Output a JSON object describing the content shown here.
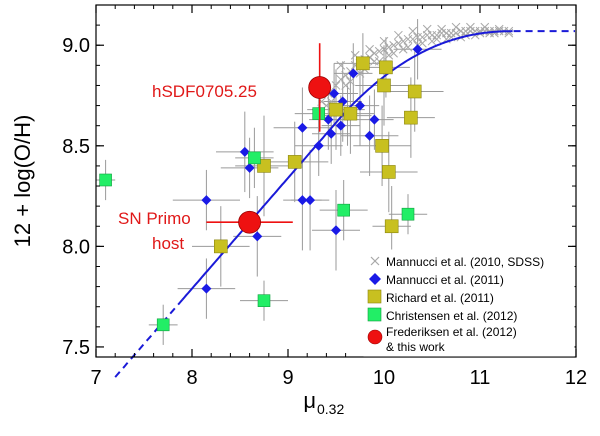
{
  "chart_data": {
    "type": "scatter",
    "xlabel_main": "μ",
    "xlabel_sub": "0.32",
    "ylabel": "12 + log(O/H)",
    "xlim": [
      7,
      12
    ],
    "ylim": [
      7.45,
      9.2
    ],
    "xticks": [
      "7",
      "8",
      "9",
      "10",
      "11",
      "12"
    ],
    "xtick_values": [
      7,
      8,
      9,
      10,
      11,
      12
    ],
    "yticks": [
      "7.5",
      "8.0",
      "8.5",
      "9.0"
    ],
    "ytick_values": [
      7.5,
      8.0,
      8.5,
      9.0
    ],
    "legend_position": "bottom-right",
    "colors": {
      "sdss": "#a8a8a8",
      "mannucci2011": "#1a1ae6",
      "richard": "#c8c020",
      "christensen": "#22ee66",
      "frederiksen": "#ee1111",
      "relation": "#1a1ad8",
      "errorbar": "#9a9a9a",
      "annotation": "#e01818"
    },
    "relation_solid": {
      "x_start": 7.9,
      "x_end": 11.35
    },
    "relation_dashed_low": {
      "x_start": 7.2,
      "x_end": 7.9
    },
    "relation_dashed_high": {
      "x_start": 11.35,
      "x_end": 12.0
    },
    "series": [
      {
        "name": "Mannucci et al. (2010, SDSS)",
        "marker": "cross",
        "points": [
          [
            9.35,
            8.72
          ],
          [
            9.42,
            8.76
          ],
          [
            9.5,
            8.8
          ],
          [
            9.55,
            8.83
          ],
          [
            9.6,
            8.85
          ],
          [
            9.65,
            8.87
          ],
          [
            9.7,
            8.9
          ],
          [
            9.75,
            8.91
          ],
          [
            9.8,
            8.93
          ],
          [
            9.85,
            8.94
          ],
          [
            9.9,
            8.96
          ],
          [
            9.95,
            8.97
          ],
          [
            10.0,
            8.98
          ],
          [
            10.05,
            8.99
          ],
          [
            10.1,
            9.0
          ],
          [
            10.15,
            9.01
          ],
          [
            10.2,
            9.02
          ],
          [
            10.25,
            9.03
          ],
          [
            10.3,
            9.03
          ],
          [
            10.35,
            9.04
          ],
          [
            10.4,
            9.04
          ],
          [
            10.45,
            9.05
          ],
          [
            10.5,
            9.05
          ],
          [
            10.55,
            9.05
          ],
          [
            10.6,
            9.06
          ],
          [
            10.65,
            9.06
          ],
          [
            10.7,
            9.06
          ],
          [
            10.75,
            9.06
          ],
          [
            10.8,
            9.07
          ],
          [
            10.85,
            9.07
          ],
          [
            10.9,
            9.07
          ],
          [
            10.95,
            9.07
          ],
          [
            11.0,
            9.07
          ],
          [
            11.05,
            9.07
          ],
          [
            11.1,
            9.07
          ],
          [
            11.15,
            9.07
          ],
          [
            11.2,
            9.07
          ],
          [
            11.25,
            9.07
          ],
          [
            11.3,
            9.07
          ],
          [
            9.45,
            8.72
          ],
          [
            9.6,
            8.8
          ],
          [
            9.75,
            8.86
          ],
          [
            9.9,
            8.92
          ],
          [
            10.05,
            8.95
          ],
          [
            10.2,
            8.98
          ],
          [
            10.35,
            9.0
          ],
          [
            10.5,
            9.02
          ],
          [
            10.65,
            9.03
          ],
          [
            10.8,
            9.04
          ],
          [
            10.95,
            9.05
          ],
          [
            11.1,
            9.06
          ],
          [
            9.55,
            8.9
          ],
          [
            9.7,
            8.95
          ],
          [
            9.85,
            8.98
          ],
          [
            10.0,
            9.02
          ],
          [
            10.15,
            9.05
          ],
          [
            10.3,
            9.07
          ],
          [
            10.45,
            9.08
          ],
          [
            10.6,
            9.08
          ],
          [
            10.75,
            9.09
          ],
          [
            10.9,
            9.09
          ],
          [
            11.05,
            9.09
          ],
          [
            11.2,
            9.08
          ],
          [
            9.3,
            8.66
          ],
          [
            9.4,
            8.7
          ],
          [
            9.65,
            8.82
          ],
          [
            9.8,
            8.88
          ],
          [
            9.95,
            8.92
          ],
          [
            10.1,
            8.96
          ],
          [
            10.25,
            8.99
          ],
          [
            10.4,
            9.01
          ],
          [
            10.55,
            9.03
          ],
          [
            10.7,
            9.04
          ],
          [
            10.85,
            9.05
          ],
          [
            11.0,
            9.06
          ],
          [
            11.15,
            9.06
          ],
          [
            11.3,
            9.06
          ]
        ]
      },
      {
        "name": "Mannucci et al. (2011)",
        "marker": "diamond",
        "points": [
          {
            "x": 8.15,
            "y": 8.23,
            "xe": 0.35,
            "ye": 0.15
          },
          {
            "x": 8.15,
            "y": 7.79,
            "xe": 0.3,
            "ye": 0.15
          },
          {
            "x": 8.55,
            "y": 8.47,
            "xe": 0.3,
            "ye": 0.2
          },
          {
            "x": 8.6,
            "y": 8.39,
            "xe": 0.3,
            "ye": 0.15
          },
          {
            "x": 8.68,
            "y": 8.05,
            "xe": 0.25,
            "ye": 0.2
          },
          {
            "x": 9.15,
            "y": 8.59,
            "xe": 0.3,
            "ye": 0.2
          },
          {
            "x": 9.15,
            "y": 8.23,
            "xe": 0.2,
            "ye": 0.25
          },
          {
            "x": 9.23,
            "y": 8.23,
            "xe": 0.2,
            "ye": 0.25
          },
          {
            "x": 9.32,
            "y": 8.5,
            "xe": 0.25,
            "ye": 0.15
          },
          {
            "x": 9.42,
            "y": 8.63,
            "xe": 0.2,
            "ye": 0.15
          },
          {
            "x": 9.45,
            "y": 8.56,
            "xe": 0.2,
            "ye": 0.15
          },
          {
            "x": 9.48,
            "y": 8.76,
            "xe": 0.25,
            "ye": 0.15
          },
          {
            "x": 9.5,
            "y": 8.08,
            "xe": 0.25,
            "ye": 0.2
          },
          {
            "x": 9.55,
            "y": 8.6,
            "xe": 0.2,
            "ye": 0.15
          },
          {
            "x": 9.57,
            "y": 8.72,
            "xe": 0.2,
            "ye": 0.2
          },
          {
            "x": 9.62,
            "y": 8.65,
            "xe": 0.25,
            "ye": 0.15
          },
          {
            "x": 9.68,
            "y": 8.86,
            "xe": 0.2,
            "ye": 0.15
          },
          {
            "x": 9.75,
            "y": 8.7,
            "xe": 0.2,
            "ye": 0.2
          },
          {
            "x": 9.85,
            "y": 8.55,
            "xe": 0.3,
            "ye": 0.2
          },
          {
            "x": 9.9,
            "y": 8.63,
            "xe": 0.2,
            "ye": 0.15
          },
          {
            "x": 10.35,
            "y": 8.98,
            "xe": 0.25,
            "ye": 0.15
          }
        ]
      },
      {
        "name": "Richard et al. (2011)",
        "marker": "square",
        "points": [
          {
            "x": 8.3,
            "y": 8.0,
            "xe": 0.3,
            "ye": 0.2
          },
          {
            "x": 8.75,
            "y": 8.4,
            "xe": 0.3,
            "ye": 0.25
          },
          {
            "x": 9.07,
            "y": 8.42,
            "xe": 0.35,
            "ye": 0.2
          },
          {
            "x": 9.5,
            "y": 8.68,
            "xe": 0.3,
            "ye": 0.2
          },
          {
            "x": 9.65,
            "y": 8.66,
            "xe": 0.25,
            "ye": 0.2
          },
          {
            "x": 9.78,
            "y": 8.91,
            "xe": 0.3,
            "ye": 0.15
          },
          {
            "x": 9.98,
            "y": 8.5,
            "xe": 0.3,
            "ye": 0.2
          },
          {
            "x": 10.0,
            "y": 8.8,
            "xe": 0.3,
            "ye": 0.2
          },
          {
            "x": 10.02,
            "y": 8.89,
            "xe": 0.25,
            "ye": 0.15
          },
          {
            "x": 10.05,
            "y": 8.37,
            "xe": 0.3,
            "ye": 0.2
          },
          {
            "x": 10.08,
            "y": 8.1,
            "xe": 0.2,
            "ye": 0.2
          },
          {
            "x": 10.28,
            "y": 8.64,
            "xe": 0.25,
            "ye": 0.2
          },
          {
            "x": 10.32,
            "y": 8.77,
            "xe": 0.3,
            "ye": 0.2
          }
        ]
      },
      {
        "name": "Christensen et al. (2012)",
        "marker": "square",
        "points": [
          {
            "x": 7.1,
            "y": 8.33,
            "xe": 0.1,
            "ye": 0.1
          },
          {
            "x": 7.7,
            "y": 7.61,
            "xe": 0.15,
            "ye": 0.1
          },
          {
            "x": 8.65,
            "y": 8.44,
            "xe": 0.2,
            "ye": 0.15
          },
          {
            "x": 8.75,
            "y": 7.73,
            "xe": 0.25,
            "ye": 0.1
          },
          {
            "x": 9.32,
            "y": 8.66,
            "xe": 0.25,
            "ye": 0.1
          },
          {
            "x": 9.58,
            "y": 8.18,
            "xe": 0.25,
            "ye": 0.15
          },
          {
            "x": 10.25,
            "y": 8.16,
            "xe": 0.2,
            "ye": 0.1
          }
        ]
      },
      {
        "name": "Frederiksen et al. (2012) & this work",
        "marker": "circle",
        "points": [
          {
            "x": 9.33,
            "y": 8.79,
            "xe": 0.0,
            "ye": 0.22,
            "label": "hSDF0705.25"
          },
          {
            "x": 8.6,
            "y": 8.12,
            "xe": 0.45,
            "ye": 0.0,
            "label": "SN Primo host"
          }
        ]
      }
    ],
    "legend": [
      {
        "label": "Mannucci et al. (2010, SDSS)",
        "marker": "cross"
      },
      {
        "label": "Mannucci et al. (2011)",
        "marker": "diamond"
      },
      {
        "label": "Richard et al. (2011)",
        "marker": "square-yellow"
      },
      {
        "label": "Christensen et al. (2012)",
        "marker": "square-green"
      },
      {
        "label": "Frederiksen et al. (2012)",
        "label2": "& this work",
        "marker": "circle"
      }
    ],
    "annotations": [
      {
        "text": "hSDF0705.25"
      },
      {
        "text": "SN Primo",
        "text2": "host"
      }
    ]
  }
}
